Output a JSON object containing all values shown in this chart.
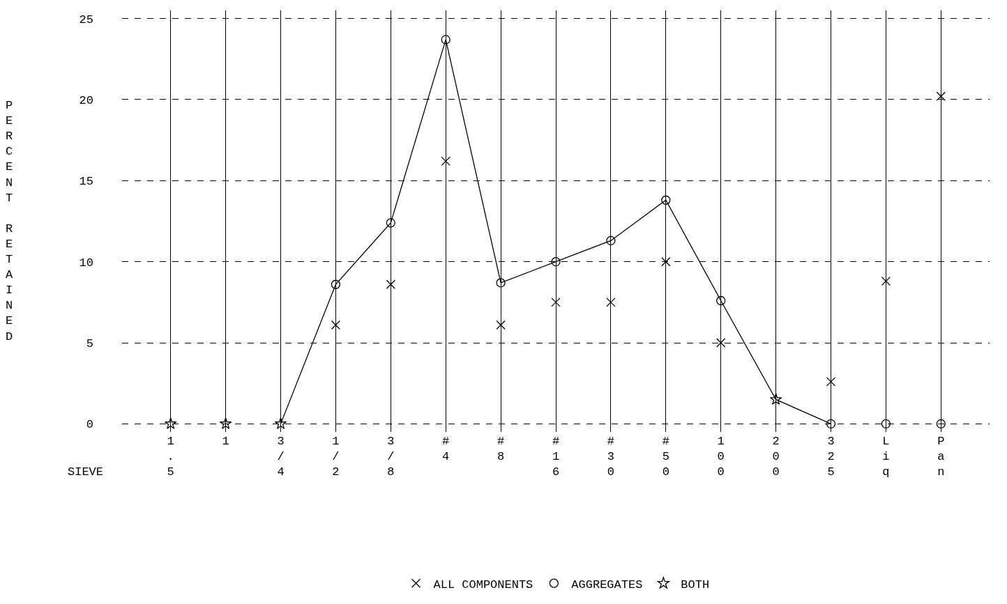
{
  "chart_data": {
    "type": "scatter",
    "xlabel": "SIEVE",
    "ylabel": "PERCENT RETAINED",
    "categories": [
      "1.5",
      "1",
      "3/4",
      "1/2",
      "3/8",
      "#4",
      "#8",
      "#16",
      "#30",
      "#50",
      "100",
      "200",
      "325",
      "Liq",
      "Pan"
    ],
    "series": [
      {
        "type": "line",
        "marker": "none",
        "line_style": "solid",
        "color": "#000000",
        "values": [
          null,
          null,
          0,
          8.6,
          12.4,
          23.7,
          8.7,
          10.0,
          11.3,
          13.8,
          7.6,
          1.5,
          0,
          null,
          null
        ]
      },
      {
        "name": "ALL COMPONENTS",
        "marker": "cross",
        "color": "#000000",
        "values": [
          null,
          null,
          null,
          6.1,
          8.6,
          16.2,
          6.1,
          7.5,
          7.5,
          10.0,
          5.0,
          null,
          2.6,
          8.8,
          20.2
        ]
      },
      {
        "name": "AGGREGATES",
        "marker": "circle",
        "color": "#000000",
        "values": [
          null,
          null,
          null,
          8.6,
          12.4,
          23.7,
          8.7,
          10.0,
          11.3,
          13.8,
          7.6,
          null,
          0,
          0,
          0
        ]
      },
      {
        "name": "BOTH",
        "marker": "star",
        "color": "#000000",
        "values": [
          0,
          0,
          0,
          null,
          null,
          null,
          null,
          null,
          null,
          null,
          null,
          1.5,
          null,
          null,
          null
        ]
      }
    ],
    "ylim": [
      -0.5,
      25.5
    ],
    "yticks": [
      0,
      5,
      10,
      15,
      20,
      25
    ],
    "grid": true,
    "legend": "bottom"
  }
}
